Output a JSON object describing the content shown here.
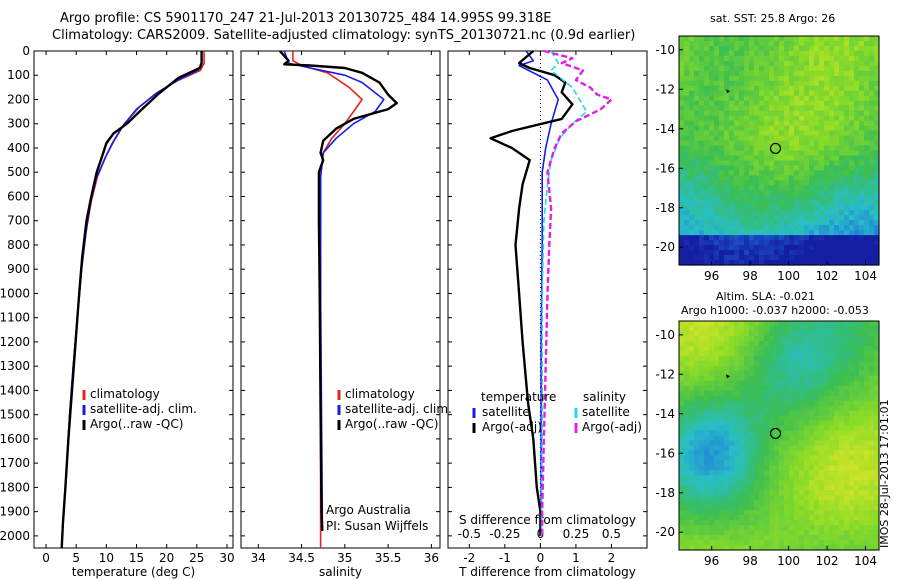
{
  "titles": {
    "line1": "Argo profile: CS 5901170_247 21-Jul-2013 20130725_484 14.995S 99.318E",
    "line2": "Climatology: CARS2009. Satellite-adjusted climatology: synTS_20130721.nc (0.9d earlier)",
    "map1": "sat. SST: 25.8 Argo: 26",
    "map2a": "Altim. SLA: -0.021",
    "map2b": "Argo h1000: -0.037 h2000: -0.053",
    "stamp": "IMOS 28-Jul-2013 17:01:01"
  },
  "colors": {
    "climatology": "#e8231b",
    "satellite": "#1a1ae6",
    "argo": "#000000",
    "sal_sat": "#22d8e8",
    "sal_argo": "#e020e8"
  },
  "chart_data": [
    {
      "type": "line",
      "xlabel": "temperature (deg C)",
      "ylabel": "",
      "xlim": [
        -2,
        31
      ],
      "ylim": [
        0,
        2050
      ],
      "xticks": [
        0,
        5,
        10,
        15,
        20,
        25,
        30
      ],
      "yticks": [
        0,
        100,
        200,
        300,
        400,
        500,
        600,
        700,
        800,
        900,
        1000,
        1100,
        1200,
        1300,
        1400,
        1500,
        1600,
        1700,
        1800,
        1900,
        2000
      ],
      "legend": [
        "climatology",
        "satellite-adj. clim.",
        "Argo(..raw -QC)"
      ],
      "legend_position": "bottom-center",
      "series": [
        {
          "name": "climatology",
          "color": "#e8231b",
          "points": [
            [
              26.2,
              0
            ],
            [
              26.2,
              50
            ],
            [
              25.6,
              80
            ],
            [
              22,
              120
            ],
            [
              18.5,
              170
            ],
            [
              15.5,
              230
            ],
            [
              13,
              300
            ],
            [
              11.5,
              360
            ],
            [
              10,
              430
            ],
            [
              8.5,
              520
            ],
            [
              7.5,
              620
            ],
            [
              6.6,
              750
            ],
            [
              5.9,
              900
            ],
            [
              5.2,
              1100
            ],
            [
              4.5,
              1300
            ],
            [
              3.9,
              1500
            ],
            [
              3.3,
              1750
            ],
            [
              2.8,
              1950
            ],
            [
              2.6,
              2050
            ]
          ]
        },
        {
          "name": "satellite-adj. clim.",
          "color": "#1a1ae6",
          "points": [
            [
              25.8,
              0
            ],
            [
              25.8,
              50
            ],
            [
              25.2,
              80
            ],
            [
              21.5,
              125
            ],
            [
              18,
              180
            ],
            [
              15,
              240
            ],
            [
              12.7,
              310
            ],
            [
              11,
              380
            ],
            [
              9.8,
              440
            ],
            [
              8.4,
              520
            ],
            [
              7.4,
              620
            ],
            [
              6.6,
              750
            ],
            [
              5.9,
              900
            ],
            [
              5.2,
              1100
            ],
            [
              4.5,
              1300
            ],
            [
              3.9,
              1500
            ],
            [
              3.3,
              1750
            ],
            [
              2.8,
              1950
            ],
            [
              2.6,
              2050
            ]
          ]
        },
        {
          "name": "Argo(..raw -QC)",
          "color": "#000000",
          "points": [
            [
              25.8,
              0
            ],
            [
              25.8,
              50
            ],
            [
              25.5,
              70
            ],
            [
              22,
              110
            ],
            [
              18.5,
              180
            ],
            [
              15.5,
              250
            ],
            [
              13.4,
              300
            ],
            [
              11.2,
              340
            ],
            [
              10,
              380
            ],
            [
              9.5,
              420
            ],
            [
              8.4,
              500
            ],
            [
              7.5,
              600
            ],
            [
              6.7,
              700
            ],
            [
              6,
              850
            ],
            [
              5.5,
              1000
            ],
            [
              4.9,
              1200
            ],
            [
              4.3,
              1400
            ],
            [
              3.7,
              1600
            ],
            [
              3.2,
              1800
            ],
            [
              2.8,
              1950
            ],
            [
              2.6,
              2050
            ]
          ]
        }
      ]
    },
    {
      "type": "line",
      "xlabel": "salinity",
      "ylabel": "",
      "xlim": [
        33.8,
        36.1
      ],
      "ylim": [
        0,
        2050
      ],
      "xticks": [
        34,
        34.5,
        35,
        35.5,
        36
      ],
      "legend": [
        "climatology",
        "satellite-adj. clim.",
        "Argo(..raw -QC)"
      ],
      "legend_position": "bottom-right",
      "annotations": [
        "Argo Australia",
        "PI: Susan Wijffels"
      ],
      "series": [
        {
          "name": "climatology",
          "color": "#e8231b",
          "points": [
            [
              34.4,
              0
            ],
            [
              34.4,
              40
            ],
            [
              34.5,
              60
            ],
            [
              34.8,
              90
            ],
            [
              35.05,
              150
            ],
            [
              35.2,
              200
            ],
            [
              35.1,
              250
            ],
            [
              35,
              300
            ],
            [
              34.85,
              360
            ],
            [
              34.75,
              420
            ],
            [
              34.72,
              520
            ],
            [
              34.72,
              700
            ],
            [
              34.72,
              1000
            ],
            [
              34.72,
              1500
            ],
            [
              34.72,
              2050
            ]
          ]
        },
        {
          "name": "satellite-adj. clim.",
          "color": "#1a1ae6",
          "points": [
            [
              34.3,
              0
            ],
            [
              34.35,
              50
            ],
            [
              34.6,
              70
            ],
            [
              35,
              100
            ],
            [
              35.2,
              130
            ],
            [
              35.45,
              200
            ],
            [
              35.35,
              250
            ],
            [
              35.1,
              300
            ],
            [
              34.9,
              360
            ],
            [
              34.75,
              420
            ],
            [
              34.72,
              520
            ],
            [
              34.72,
              700
            ],
            [
              34.72,
              1000
            ],
            [
              34.73,
              1500
            ],
            [
              34.74,
              1900
            ],
            [
              34.74,
              1980
            ]
          ]
        },
        {
          "name": "Argo(..raw -QC)",
          "color": "#000000",
          "points": [
            [
              34.25,
              0
            ],
            [
              34.35,
              40
            ],
            [
              34.3,
              55
            ],
            [
              34.6,
              60
            ],
            [
              35,
              70
            ],
            [
              35.2,
              90
            ],
            [
              35.4,
              130
            ],
            [
              35.5,
              180
            ],
            [
              35.6,
              215
            ],
            [
              35.5,
              240
            ],
            [
              35.1,
              280
            ],
            [
              34.9,
              320
            ],
            [
              34.75,
              370
            ],
            [
              34.72,
              420
            ],
            [
              34.75,
              450
            ],
            [
              34.7,
              500
            ],
            [
              34.7,
              700
            ],
            [
              34.71,
              1000
            ],
            [
              34.72,
              1500
            ],
            [
              34.73,
              1900
            ],
            [
              34.74,
              1980
            ]
          ]
        }
      ]
    },
    {
      "type": "line",
      "xlabel": "T difference from climatology",
      "x2label": "S difference from climatology",
      "ylabel": "",
      "xlim": [
        -2.6,
        3
      ],
      "ylim": [
        0,
        2050
      ],
      "xticks": [
        -2,
        -1,
        0,
        1,
        2
      ],
      "x2ticks": [
        "-0.5",
        "-0.25",
        "0",
        "0.25",
        "0.5"
      ],
      "legend": [
        "temperature",
        "satellite",
        "Argo(-adj)",
        "salinity",
        "satellite",
        "Argo(-adj)"
      ],
      "legend_position": "bottom-center",
      "series": [
        {
          "name": "temperature satellite",
          "color": "#1a1ae6",
          "points": [
            [
              -0.4,
              0
            ],
            [
              -0.2,
              40
            ],
            [
              -0.6,
              60
            ],
            [
              0.2,
              120
            ],
            [
              0.5,
              200
            ],
            [
              0.3,
              300
            ],
            [
              0.15,
              400
            ],
            [
              0.05,
              500
            ],
            [
              0.05,
              800
            ],
            [
              0.02,
              1200
            ],
            [
              0.02,
              1600
            ],
            [
              0.02,
              2000
            ]
          ]
        },
        {
          "name": "temperature Argo(-adj)",
          "color": "#000000",
          "points": [
            [
              -0.2,
              0
            ],
            [
              -0.6,
              50
            ],
            [
              -0.3,
              70
            ],
            [
              0.4,
              100
            ],
            [
              0.7,
              130
            ],
            [
              0.6,
              170
            ],
            [
              0.9,
              220
            ],
            [
              0.6,
              280
            ],
            [
              -0.8,
              330
            ],
            [
              -1.4,
              360
            ],
            [
              -0.8,
              400
            ],
            [
              -0.3,
              450
            ],
            [
              -0.5,
              550
            ],
            [
              -0.6,
              650
            ],
            [
              -0.7,
              800
            ],
            [
              -0.6,
              1000
            ],
            [
              -0.5,
              1200
            ],
            [
              -0.35,
              1450
            ],
            [
              -0.2,
              1600
            ],
            [
              -0.1,
              1800
            ],
            [
              0,
              1900
            ],
            [
              0,
              2000
            ]
          ]
        },
        {
          "name": "salinity satellite",
          "color": "#22d8e8",
          "points": [
            [
              0.3,
              0
            ],
            [
              0.5,
              50
            ],
            [
              0.3,
              80
            ],
            [
              0.9,
              150
            ],
            [
              1.1,
              200
            ],
            [
              1.3,
              250
            ],
            [
              0.9,
              300
            ],
            [
              0.55,
              360
            ],
            [
              0.3,
              450
            ],
            [
              0.2,
              550
            ],
            [
              0.1,
              700
            ],
            [
              0.05,
              1000
            ],
            [
              0.05,
              1500
            ],
            [
              0.03,
              1900
            ],
            [
              0.03,
              2000
            ]
          ]
        },
        {
          "name": "salinity Argo(-adj)",
          "color": "#e020e8",
          "points": [
            [
              0.1,
              0
            ],
            [
              0.9,
              30
            ],
            [
              0.6,
              50
            ],
            [
              1.2,
              80
            ],
            [
              1.0,
              120
            ],
            [
              1.4,
              150
            ],
            [
              1.6,
              180
            ],
            [
              2.0,
              200
            ],
            [
              1.7,
              240
            ],
            [
              1.0,
              290
            ],
            [
              0.6,
              340
            ],
            [
              0.4,
              400
            ],
            [
              0.2,
              500
            ],
            [
              0.3,
              650
            ],
            [
              0.25,
              800
            ],
            [
              0.2,
              1000
            ],
            [
              0.15,
              1300
            ],
            [
              0.1,
              1600
            ],
            [
              0.05,
              1900
            ],
            [
              0.05,
              2000
            ]
          ]
        }
      ]
    },
    {
      "type": "heatmap",
      "title": "sat. SST: 25.8 Argo: 26",
      "xlim": [
        94.3,
        104.7
      ],
      "ylim": [
        -20.9,
        -9.3
      ],
      "xticks": [
        96,
        98,
        100,
        102,
        104
      ],
      "yticks": [
        -10,
        -12,
        -14,
        -16,
        -18,
        -20
      ],
      "marker": {
        "lon": 99.318,
        "lat": -14.995
      },
      "track": {
        "lon": 96.9,
        "lat": -12.1
      }
    },
    {
      "type": "heatmap",
      "title": "Altim. SLA: -0.021",
      "xlim": [
        94.3,
        104.7
      ],
      "ylim": [
        -20.9,
        -9.3
      ],
      "xticks": [
        96,
        98,
        100,
        102,
        104
      ],
      "yticks": [
        -10,
        -12,
        -14,
        -16,
        -18,
        -20
      ],
      "marker": {
        "lon": 99.318,
        "lat": -14.995
      },
      "track": {
        "lon": 96.9,
        "lat": -12.1
      }
    }
  ]
}
